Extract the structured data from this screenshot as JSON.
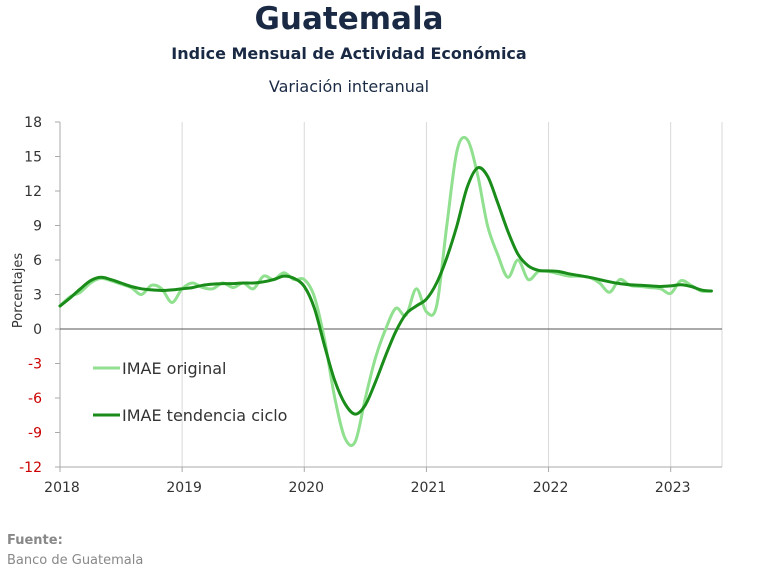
{
  "chart_data": {
    "type": "line",
    "title": "Guatemala",
    "subtitle": "Indice Mensual de  Actividad Económica",
    "subtitle2": "Variación interanual",
    "ylabel": "Porcentajes",
    "ylim": [
      -12,
      18
    ],
    "yticks": [
      "18",
      "15",
      "12",
      "9",
      "6",
      "3",
      "0",
      "-3",
      "-6",
      "-9",
      "-12"
    ],
    "ytick_values": [
      18,
      15,
      12,
      9,
      6,
      3,
      0,
      -3,
      -6,
      -9,
      -12
    ],
    "xlim": [
      2018,
      2023.42
    ],
    "xticks": [
      "2018",
      "2019",
      "2020",
      "2021",
      "2022",
      "2023"
    ],
    "xtick_values": [
      2018,
      2019,
      2020,
      2021,
      2022,
      2023
    ],
    "grid": "vertical",
    "legend_position": "inside-lower-left",
    "colors": {
      "negative_tick": "#cc0000",
      "original": "#90e090",
      "trend": "#1a8c1a"
    },
    "series": [
      {
        "name": "IMAE original",
        "color": "#90e090",
        "x": [
          2018.0,
          2018.083,
          2018.167,
          2018.25,
          2018.333,
          2018.417,
          2018.5,
          2018.583,
          2018.667,
          2018.75,
          2018.833,
          2018.917,
          2019.0,
          2019.083,
          2019.167,
          2019.25,
          2019.333,
          2019.417,
          2019.5,
          2019.583,
          2019.667,
          2019.75,
          2019.833,
          2019.917,
          2020.0,
          2020.083,
          2020.167,
          2020.25,
          2020.333,
          2020.417,
          2020.5,
          2020.583,
          2020.667,
          2020.75,
          2020.833,
          2020.917,
          2021.0,
          2021.083,
          2021.167,
          2021.25,
          2021.333,
          2021.417,
          2021.5,
          2021.583,
          2021.667,
          2021.75,
          2021.833,
          2021.917,
          2022.0,
          2022.083,
          2022.167,
          2022.25,
          2022.333,
          2022.417,
          2022.5,
          2022.583,
          2022.667,
          2022.75,
          2022.833,
          2022.917,
          2023.0,
          2023.083,
          2023.167,
          2023.25,
          2023.333
        ],
        "values": [
          2.0,
          2.8,
          3.2,
          4.0,
          4.4,
          4.2,
          3.9,
          3.6,
          3.0,
          3.8,
          3.5,
          2.3,
          3.5,
          4.0,
          3.6,
          3.5,
          4.0,
          3.6,
          4.0,
          3.5,
          4.6,
          4.3,
          4.9,
          4.3,
          4.3,
          2.8,
          -1.0,
          -6.0,
          -9.5,
          -9.8,
          -6.0,
          -2.5,
          0.0,
          1.8,
          1.2,
          3.5,
          1.5,
          2.0,
          9.0,
          15.5,
          16.5,
          13.5,
          9.0,
          6.5,
          4.5,
          6.0,
          4.3,
          5.0,
          5.0,
          4.8,
          4.6,
          4.6,
          4.5,
          4.0,
          3.2,
          4.3,
          3.8,
          3.7,
          3.6,
          3.5,
          3.1,
          4.2,
          3.8,
          3.3,
          3.3
        ]
      },
      {
        "name": "IMAE tendencia ciclo",
        "color": "#1a8c1a",
        "x": [
          2018.0,
          2018.083,
          2018.167,
          2018.25,
          2018.333,
          2018.417,
          2018.5,
          2018.583,
          2018.667,
          2018.75,
          2018.833,
          2018.917,
          2019.0,
          2019.083,
          2019.167,
          2019.25,
          2019.333,
          2019.417,
          2019.5,
          2019.583,
          2019.667,
          2019.75,
          2019.833,
          2019.917,
          2020.0,
          2020.083,
          2020.167,
          2020.25,
          2020.333,
          2020.417,
          2020.5,
          2020.583,
          2020.667,
          2020.75,
          2020.833,
          2020.917,
          2021.0,
          2021.083,
          2021.167,
          2021.25,
          2021.333,
          2021.417,
          2021.5,
          2021.583,
          2021.667,
          2021.75,
          2021.833,
          2021.917,
          2022.0,
          2022.083,
          2022.167,
          2022.25,
          2022.333,
          2022.417,
          2022.5,
          2022.583,
          2022.667,
          2022.75,
          2022.833,
          2022.917,
          2023.0,
          2023.083,
          2023.167,
          2023.25,
          2023.333
        ],
        "values": [
          2.0,
          2.7,
          3.5,
          4.2,
          4.5,
          4.3,
          4.0,
          3.7,
          3.5,
          3.4,
          3.35,
          3.4,
          3.5,
          3.6,
          3.8,
          3.9,
          3.95,
          3.95,
          4.0,
          4.0,
          4.1,
          4.3,
          4.6,
          4.4,
          3.7,
          1.8,
          -1.5,
          -4.5,
          -6.5,
          -7.4,
          -6.6,
          -4.6,
          -2.3,
          -0.2,
          1.3,
          2.0,
          2.6,
          4.0,
          6.2,
          9.0,
          12.3,
          14.0,
          13.3,
          11.0,
          8.5,
          6.5,
          5.5,
          5.1,
          5.05,
          5.0,
          4.8,
          4.65,
          4.5,
          4.3,
          4.1,
          3.95,
          3.85,
          3.8,
          3.75,
          3.7,
          3.75,
          3.85,
          3.7,
          3.4,
          3.3
        ]
      }
    ],
    "source_label": "Fuente:",
    "source_text": "Banco de Guatemala"
  }
}
